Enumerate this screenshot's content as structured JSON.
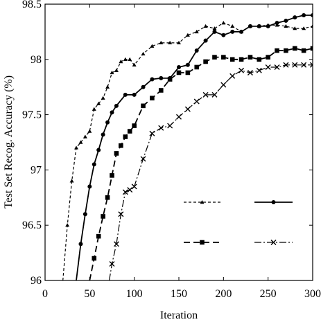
{
  "chart_data": {
    "type": "line",
    "title": "",
    "xlabel": "Iteration",
    "ylabel": "Test Set Recog. Accuracy (%)",
    "xlim": [
      0,
      300
    ],
    "ylim": [
      96,
      98.5
    ],
    "xticks": [
      0,
      50,
      100,
      150,
      200,
      250,
      300
    ],
    "xtick_labels": [
      "0",
      "50",
      "100",
      "150",
      "200",
      "250",
      "300"
    ],
    "yticks": [
      96,
      96.5,
      97,
      97.5,
      98,
      98.5
    ],
    "ytick_labels": [
      "96",
      "96.5",
      "97",
      "97.5",
      "98",
      "98.5"
    ],
    "grid": false,
    "legend": "lower-right, entries shown without text",
    "series": [
      {
        "marker": "triangle",
        "dash": "short-dash",
        "x": [
          20,
          25,
          30,
          35,
          40,
          45,
          50,
          55,
          60,
          65,
          70,
          75,
          80,
          85,
          90,
          95,
          100,
          110,
          120,
          130,
          140,
          150,
          160,
          170,
          180,
          190,
          200,
          210,
          220,
          230,
          240,
          250,
          260,
          270,
          280,
          290,
          300
        ],
        "y": [
          96.0,
          96.5,
          96.9,
          97.2,
          97.25,
          97.3,
          97.35,
          97.55,
          97.6,
          97.65,
          97.75,
          97.88,
          97.9,
          97.98,
          98.0,
          98.0,
          97.95,
          98.05,
          98.12,
          98.15,
          98.15,
          98.15,
          98.22,
          98.25,
          98.3,
          98.28,
          98.33,
          98.3,
          98.25,
          98.3,
          98.3,
          98.31,
          98.31,
          98.3,
          98.28,
          98.28,
          98.3
        ]
      },
      {
        "marker": "circle",
        "dash": "solid",
        "x": [
          35,
          40,
          45,
          50,
          55,
          60,
          65,
          70,
          75,
          80,
          90,
          100,
          110,
          120,
          130,
          140,
          150,
          160,
          170,
          180,
          190,
          200,
          210,
          220,
          230,
          240,
          250,
          260,
          270,
          280,
          290,
          300
        ],
        "y": [
          96.0,
          96.33,
          96.6,
          96.85,
          97.05,
          97.18,
          97.32,
          97.43,
          97.52,
          97.58,
          97.68,
          97.68,
          97.75,
          97.82,
          97.83,
          97.83,
          97.93,
          97.95,
          98.08,
          98.17,
          98.25,
          98.22,
          98.25,
          98.25,
          98.3,
          98.3,
          98.3,
          98.33,
          98.35,
          98.38,
          98.4,
          98.4
        ]
      },
      {
        "marker": "square",
        "dash": "long-dash",
        "x": [
          50,
          55,
          60,
          65,
          70,
          75,
          80,
          85,
          90,
          95,
          100,
          110,
          120,
          130,
          140,
          150,
          160,
          170,
          180,
          190,
          200,
          210,
          220,
          230,
          240,
          250,
          260,
          270,
          280,
          290,
          300
        ],
        "y": [
          96.0,
          96.2,
          96.4,
          96.58,
          96.75,
          96.95,
          97.15,
          97.22,
          97.3,
          97.35,
          97.4,
          97.58,
          97.65,
          97.72,
          97.82,
          97.88,
          97.88,
          97.93,
          97.98,
          98.02,
          98.02,
          98.0,
          98.0,
          98.02,
          98.0,
          98.02,
          98.08,
          98.08,
          98.1,
          98.08,
          98.1
        ]
      },
      {
        "marker": "x",
        "dash": "dash-dot",
        "x": [
          72,
          75,
          80,
          85,
          90,
          95,
          100,
          110,
          120,
          130,
          140,
          150,
          160,
          170,
          180,
          190,
          200,
          210,
          220,
          230,
          240,
          250,
          260,
          270,
          280,
          290,
          300
        ],
        "y": [
          96.0,
          96.15,
          96.33,
          96.6,
          96.8,
          96.82,
          96.85,
          97.1,
          97.33,
          97.38,
          97.4,
          97.48,
          97.55,
          97.62,
          97.68,
          97.68,
          97.77,
          97.85,
          97.9,
          97.88,
          97.9,
          97.93,
          97.93,
          97.95,
          97.95,
          97.95,
          97.95
        ]
      }
    ]
  }
}
